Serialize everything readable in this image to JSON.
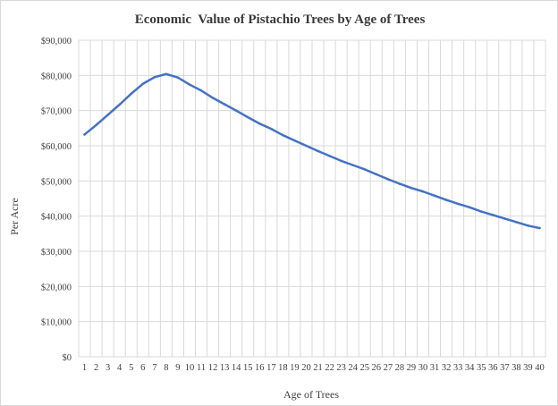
{
  "chart_data": {
    "type": "line",
    "title": "Economic  Value of Pistachio Trees by Age of Trees",
    "xlabel": "Age of Trees",
    "ylabel": "Per Acre",
    "grid": true,
    "legend": "none",
    "ylim": [
      0,
      90000
    ],
    "y_ticks": [
      "$0",
      "$10,000",
      "$20,000",
      "$30,000",
      "$40,000",
      "$50,000",
      "$60,000",
      "$70,000",
      "$80,000",
      "$90,000"
    ],
    "categories": [
      "1",
      "2",
      "3",
      "4",
      "5",
      "6",
      "7",
      "8",
      "9",
      "10",
      "11",
      "12",
      "13",
      "14",
      "15",
      "16",
      "17",
      "18",
      "19",
      "20",
      "21",
      "22",
      "23",
      "24",
      "25",
      "26",
      "27",
      "28",
      "29",
      "30",
      "31",
      "32",
      "33",
      "34",
      "35",
      "36",
      "37",
      "38",
      "39",
      "40"
    ],
    "series": [
      {
        "color": "#4472c4",
        "values": [
          63200,
          65900,
          68800,
          71700,
          74800,
          77600,
          79500,
          80400,
          79400,
          77400,
          75700,
          73600,
          71800,
          70000,
          68100,
          66300,
          64800,
          63000,
          61500,
          60000,
          58500,
          57100,
          55700,
          54500,
          53300,
          51900,
          50500,
          49200,
          48000,
          47000,
          45800,
          44600,
          43500,
          42500,
          41300,
          40300,
          39300,
          38300,
          37300,
          36600
        ]
      }
    ]
  }
}
